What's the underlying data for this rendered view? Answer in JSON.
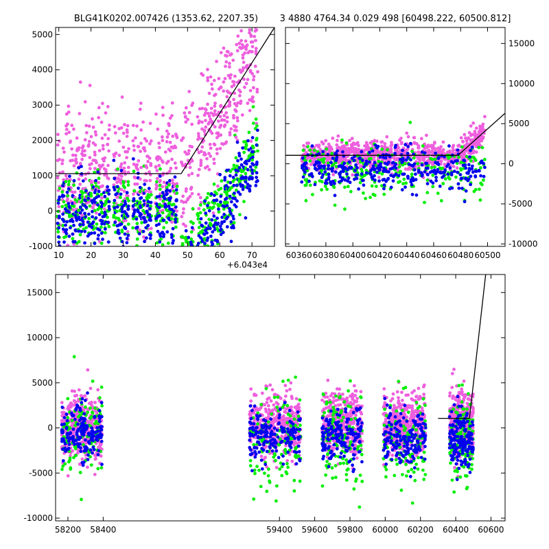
{
  "title_left": "BLG41K0202.007426 (1353.62, 2207.35)",
  "title_right": "3 4880 4764.34 0.029 498 [60498.222, 60500.812]",
  "colors": {
    "green": "#00ee00",
    "blue": "#0000ee",
    "pink": "#ee5fde",
    "model": "#000000"
  },
  "chart_data": [
    {
      "type": "scatter",
      "panel": "top-left",
      "xlim": [
        9,
        77
      ],
      "ylim": [
        -1000,
        5200
      ],
      "x_offset_label": "+6.043e4",
      "xticks": [
        10,
        20,
        30,
        40,
        50,
        60,
        70
      ],
      "yticks": [
        -1000,
        0,
        1000,
        2000,
        3000,
        4000,
        5000
      ],
      "ytick_side": "left",
      "model_line": {
        "x": [
          9,
          48,
          77
        ],
        "y": [
          1060,
          1060,
          5200
        ]
      }
    },
    {
      "type": "scatter",
      "panel": "top-right",
      "xlim": [
        60350,
        60513
      ],
      "ylim": [
        -10300,
        17000
      ],
      "xticks": [
        60360,
        60380,
        60400,
        60420,
        60440,
        60460,
        60480,
        60500
      ],
      "yticks": [
        -10000,
        -5000,
        0,
        5000,
        10000,
        15000
      ],
      "ytick_side": "right",
      "model_line": {
        "x": [
          60350,
          60478,
          60513
        ],
        "y": [
          1060,
          1060,
          6300
        ]
      }
    },
    {
      "type": "scatter",
      "panel": "bottom",
      "xlim": [
        58130,
        60680
      ],
      "ylim": [
        -10300,
        17000
      ],
      "xticks": [
        58200,
        58400,
        59400,
        59600,
        59800,
        60000,
        60200,
        60400,
        60600
      ],
      "yticks": [
        -10000,
        -5000,
        0,
        5000,
        10000,
        15000
      ],
      "ytick_side": "left",
      "axis_break": true,
      "model_line": {
        "x": [
          60300,
          60478,
          60570
        ],
        "y": [
          1060,
          1060,
          17000
        ]
      },
      "seasons": [
        {
          "x": [
            58165,
            58395
          ],
          "pink_center": 0,
          "green_center": -700,
          "blue_center": -600
        },
        {
          "x": [
            59230,
            59520
          ],
          "pink_center": 300,
          "green_center": -1500,
          "blue_center": -900
        },
        {
          "x": [
            59640,
            59870
          ],
          "pink_center": 500,
          "green_center": -1200,
          "blue_center": -1100
        },
        {
          "x": [
            59990,
            60230
          ],
          "pink_center": 300,
          "green_center": -1300,
          "blue_center": -1200
        },
        {
          "x": [
            60365,
            60500
          ],
          "pink_center": 400,
          "green_center": -1400,
          "blue_center": -1300
        }
      ]
    }
  ]
}
